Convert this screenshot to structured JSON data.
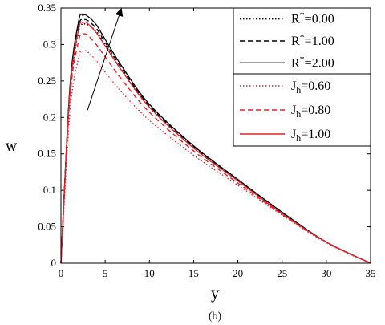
{
  "chart_data": {
    "type": "line",
    "xlabel": "y",
    "ylabel": "w",
    "xlim": [
      0,
      35
    ],
    "ylim": [
      0,
      0.35
    ],
    "xticks": [
      0,
      5,
      10,
      15,
      20,
      25,
      30,
      35
    ],
    "yticks": [
      0,
      0.05,
      0.1,
      0.15,
      0.2,
      0.25,
      0.3,
      0.35
    ],
    "x": [
      0,
      1,
      2,
      2.5,
      3,
      4,
      5,
      7,
      10,
      15,
      20,
      25,
      30,
      35
    ],
    "series": [
      {
        "name": "R*=0.00",
        "sup": "*",
        "base": "R",
        "rest": "=0.00",
        "group": "R",
        "color": "#000000",
        "dash": "dotted",
        "values": [
          0,
          0.23,
          0.318,
          0.327,
          0.327,
          0.318,
          0.3,
          0.262,
          0.214,
          0.158,
          0.113,
          0.068,
          0.029,
          0
        ]
      },
      {
        "name": "R*=1.00",
        "sup": "*",
        "base": "R",
        "rest": "=1.00",
        "group": "R",
        "color": "#000000",
        "dash": "dashed",
        "values": [
          0,
          0.235,
          0.324,
          0.333,
          0.333,
          0.322,
          0.303,
          0.265,
          0.216,
          0.16,
          0.114,
          0.069,
          0.029,
          0
        ]
      },
      {
        "name": "R*=2.00",
        "sup": "*",
        "base": "R",
        "rest": "=2.00",
        "group": "R",
        "color": "#000000",
        "dash": "solid",
        "values": [
          0,
          0.24,
          0.332,
          0.34,
          0.339,
          0.327,
          0.307,
          0.268,
          0.218,
          0.161,
          0.115,
          0.07,
          0.029,
          0
        ]
      },
      {
        "name": "Jh=0.60",
        "sub": "h",
        "base": "J",
        "rest": "=0.60",
        "group": "J",
        "color": "#e8202a",
        "dash": "dotted",
        "values": [
          0,
          0.205,
          0.282,
          0.291,
          0.29,
          0.278,
          0.262,
          0.233,
          0.196,
          0.148,
          0.107,
          0.066,
          0.028,
          0
        ]
      },
      {
        "name": "Jh=0.80",
        "sub": "h",
        "base": "J",
        "rest": "=0.80",
        "group": "J",
        "color": "#e8202a",
        "dash": "dashed",
        "values": [
          0,
          0.225,
          0.305,
          0.314,
          0.313,
          0.3,
          0.283,
          0.25,
          0.207,
          0.154,
          0.11,
          0.067,
          0.029,
          0
        ]
      },
      {
        "name": "Jh=1.00",
        "sub": "h",
        "base": "J",
        "rest": "=1.00",
        "group": "J",
        "color": "#e8202a",
        "dash": "solid",
        "values": [
          0,
          0.235,
          0.321,
          0.33,
          0.329,
          0.316,
          0.298,
          0.262,
          0.214,
          0.158,
          0.113,
          0.068,
          0.029,
          0
        ]
      }
    ],
    "annotation": {
      "type": "arrow",
      "from": [
        3,
        0.21
      ],
      "to": [
        6.8,
        0.348
      ]
    },
    "legend_placement": "top-right",
    "grid": false
  },
  "caption": "(b)"
}
